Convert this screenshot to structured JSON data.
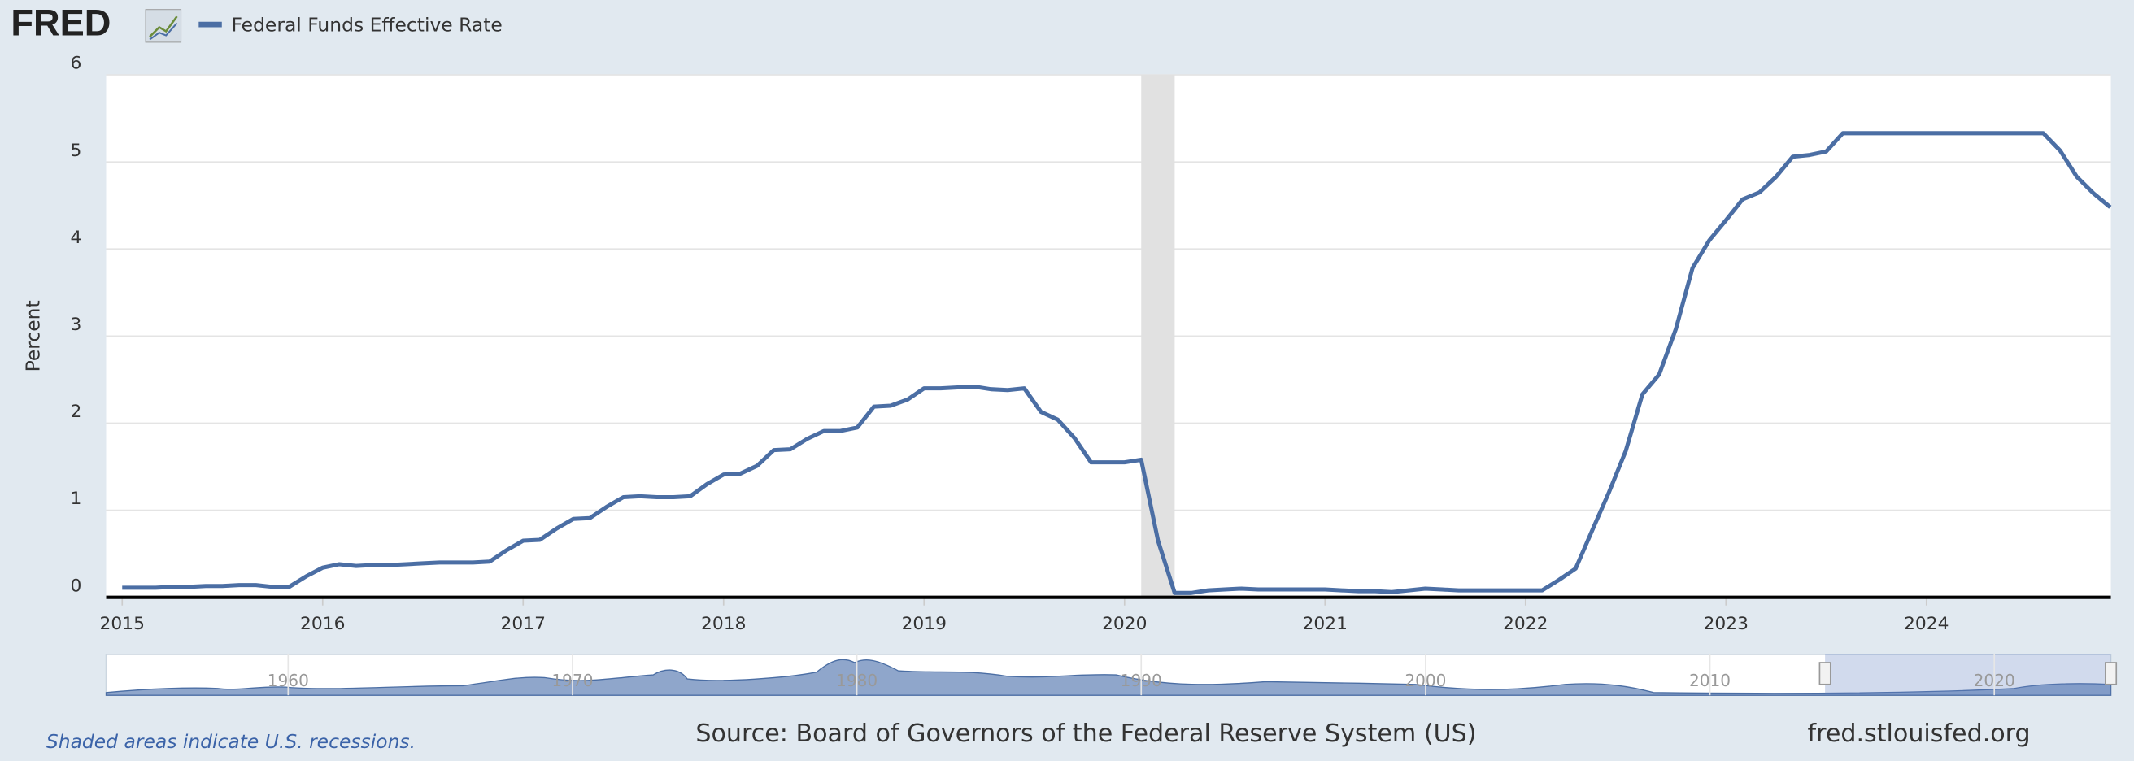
{
  "chart_data": {
    "type": "line",
    "logo": "FRED",
    "y_label": "Percent",
    "series": [
      {
        "name": "Federal Funds Effective Rate",
        "color": "#4b6ea4",
        "values": [
          0.11,
          0.11,
          0.11,
          0.12,
          0.12,
          0.13,
          0.13,
          0.14,
          0.14,
          0.12,
          0.12,
          0.24,
          0.34,
          0.38,
          0.36,
          0.37,
          0.37,
          0.38,
          0.39,
          0.4,
          0.4,
          0.4,
          0.41,
          0.54,
          0.65,
          0.66,
          0.79,
          0.9,
          0.91,
          1.04,
          1.15,
          1.16,
          1.15,
          1.15,
          1.16,
          1.3,
          1.41,
          1.42,
          1.51,
          1.69,
          1.7,
          1.82,
          1.91,
          1.91,
          1.95,
          2.19,
          2.2,
          2.27,
          2.4,
          2.4,
          2.41,
          2.42,
          2.39,
          2.38,
          2.4,
          2.13,
          2.04,
          1.83,
          1.55,
          1.55,
          1.55,
          1.58,
          0.65,
          0.05,
          0.05,
          0.08,
          0.09,
          0.1,
          0.09,
          0.09,
          0.09,
          0.09,
          0.09,
          0.08,
          0.07,
          0.07,
          0.06,
          0.08,
          0.1,
          0.09,
          0.08,
          0.08,
          0.08,
          0.08,
          0.08,
          0.08,
          0.2,
          0.33,
          0.77,
          1.21,
          1.68,
          2.33,
          2.56,
          3.08,
          3.78,
          4.1,
          4.33,
          4.57,
          4.65,
          4.83,
          5.06,
          5.08,
          5.12,
          5.33,
          5.33,
          5.33,
          5.33,
          5.33,
          5.33,
          5.33,
          5.33,
          5.33,
          5.33,
          5.33,
          5.33,
          5.33,
          5.13,
          4.83,
          4.64,
          4.48
        ]
      }
    ],
    "x": [
      2015,
      2015.083,
      2015.167,
      2015.25,
      2015.333,
      2015.417,
      2015.5,
      2015.583,
      2015.667,
      2015.75,
      2015.833,
      2015.917,
      2016,
      2016.083,
      2016.167,
      2016.25,
      2016.333,
      2016.417,
      2016.5,
      2016.583,
      2016.667,
      2016.75,
      2016.833,
      2016.917,
      2017,
      2017.083,
      2017.167,
      2017.25,
      2017.333,
      2017.417,
      2017.5,
      2017.583,
      2017.667,
      2017.75,
      2017.833,
      2017.917,
      2018,
      2018.083,
      2018.167,
      2018.25,
      2018.333,
      2018.417,
      2018.5,
      2018.583,
      2018.667,
      2018.75,
      2018.833,
      2018.917,
      2019,
      2019.083,
      2019.167,
      2019.25,
      2019.333,
      2019.417,
      2019.5,
      2019.583,
      2019.667,
      2019.75,
      2019.833,
      2019.917,
      2020,
      2020.083,
      2020.167,
      2020.25,
      2020.333,
      2020.417,
      2020.5,
      2020.583,
      2020.667,
      2020.75,
      2020.833,
      2020.917,
      2021,
      2021.083,
      2021.167,
      2021.25,
      2021.333,
      2021.417,
      2021.5,
      2021.583,
      2021.667,
      2021.75,
      2021.833,
      2021.917,
      2022,
      2022.083,
      2022.167,
      2022.25,
      2022.333,
      2022.417,
      2022.5,
      2022.583,
      2022.667,
      2022.75,
      2022.833,
      2022.917,
      2023,
      2023.083,
      2023.167,
      2023.25,
      2023.333,
      2023.417,
      2023.5,
      2023.583,
      2023.667,
      2023.75,
      2023.833,
      2023.917,
      2024,
      2024.083,
      2024.167,
      2024.25,
      2024.333,
      2024.417,
      2024.5,
      2024.583,
      2024.667,
      2024.75,
      2024.833,
      2024.917
    ],
    "xlim": [
      2014.92,
      2024.92
    ],
    "xticks": [
      2015,
      2016,
      2017,
      2018,
      2019,
      2020,
      2021,
      2022,
      2023,
      2024
    ],
    "ylim": [
      0,
      6
    ],
    "yticks": [
      0,
      1,
      2,
      3,
      4,
      5,
      6
    ],
    "grid": true,
    "recessions": [
      {
        "start": 2020.083,
        "end": 2020.25
      }
    ],
    "recession_note": "Shaded areas indicate U.S. recessions.",
    "navigator": {
      "xlim": [
        1953.6,
        2024.1
      ],
      "xticks": [
        1960,
        1970,
        1980,
        1990,
        2000,
        2010,
        2020
      ]
    },
    "source": "Source: Board of Governors of the Federal Reserve System (US)",
    "site": "fred.stlouisfed.org"
  }
}
